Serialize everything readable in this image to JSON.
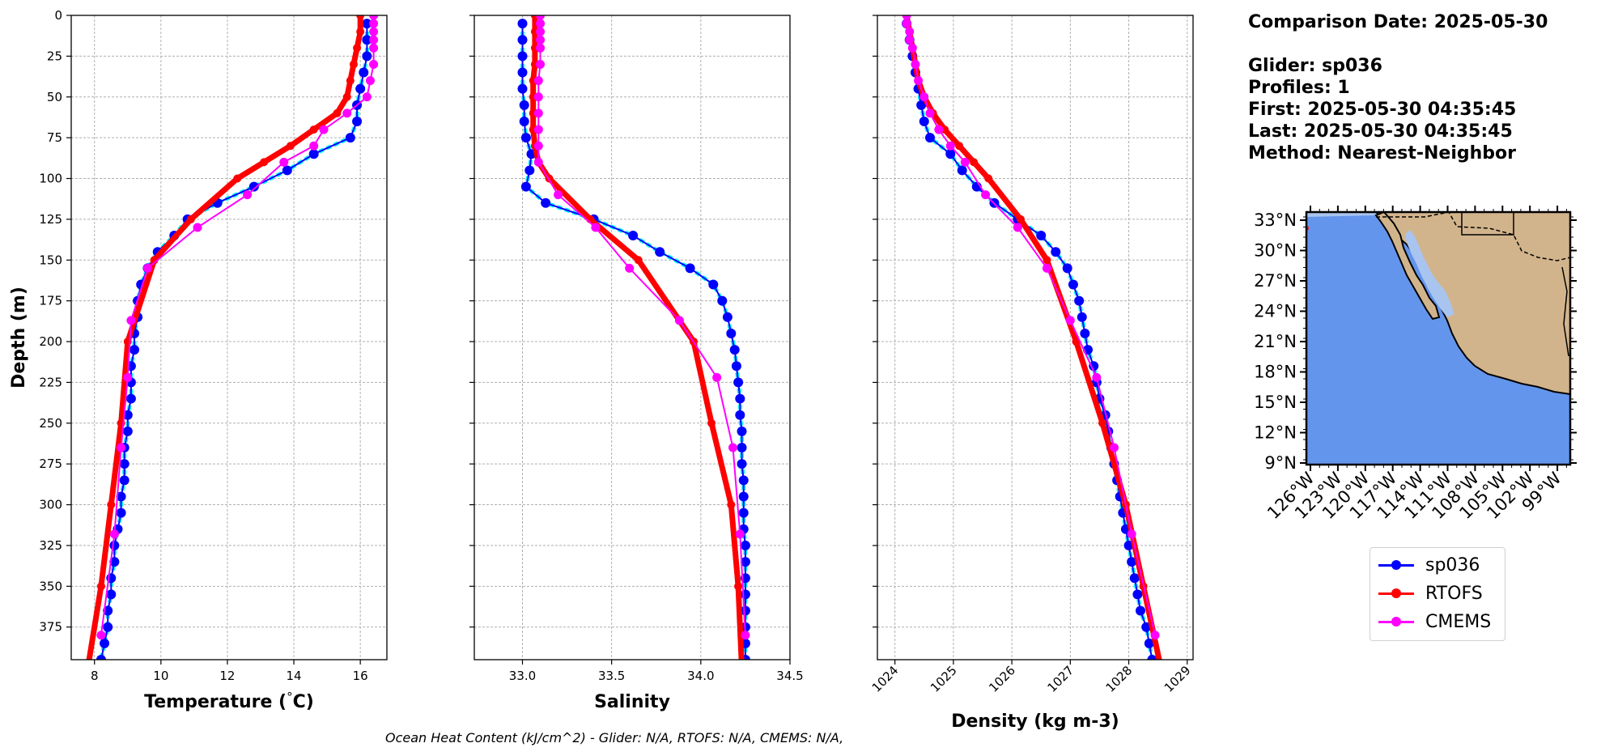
{
  "info": {
    "comparison_date": "Comparison Date: 2025-05-30",
    "glider": "Glider: sp036",
    "profiles": "Profiles: 1",
    "first": "First: 2025-05-30 04:35:45",
    "last": "Last: 2025-05-30 04:35:45",
    "method": "Method: Nearest-Neighbor"
  },
  "footnote": "Ocean Heat Content (kJ/cm^2) - Glider: N/A,  RTOFS: N/A,  CMEMS: N/A,",
  "legend": [
    {
      "name": "sp036",
      "color": "#0000ff"
    },
    {
      "name": "RTOFS",
      "color": "#ff0000"
    },
    {
      "name": "CMEMS",
      "color": "#ff00ff"
    }
  ],
  "map": {
    "lat_labels": [
      "33°N",
      "30°N",
      "27°N",
      "24°N",
      "21°N",
      "18°N",
      "15°N",
      "12°N",
      "9°N"
    ],
    "lon_labels": [
      "126°W",
      "123°W",
      "120°W",
      "117°W",
      "114°W",
      "111°W",
      "108°W",
      "105°W",
      "102°W",
      "99°W"
    ],
    "ocean_color": "#6495ed",
    "land_color": "#d2b48c"
  },
  "chart_data": [
    {
      "type": "line",
      "xlabel": "Temperature (°C)",
      "ylabel": "Depth (m)",
      "xlim": [
        7.3,
        16.8
      ],
      "ylim": [
        395,
        0
      ],
      "xticks": [
        8,
        10,
        12,
        14,
        16
      ],
      "yticks": [
        0,
        25,
        50,
        75,
        100,
        125,
        150,
        175,
        200,
        225,
        250,
        275,
        300,
        325,
        350,
        375
      ],
      "grid": true,
      "series": [
        {
          "name": "sp036",
          "depth": [
            5,
            15,
            25,
            35,
            45,
            55,
            65,
            75,
            85,
            95,
            105,
            115,
            125,
            135,
            145,
            155,
            165,
            175,
            185,
            195,
            205,
            215,
            225,
            235,
            245,
            255,
            265,
            275,
            285,
            295,
            305,
            315,
            325,
            335,
            345,
            355,
            365,
            375,
            385,
            395
          ],
          "values": [
            16.2,
            16.2,
            16.2,
            16.1,
            16.0,
            15.9,
            15.9,
            15.7,
            14.6,
            13.8,
            12.8,
            11.7,
            10.8,
            10.4,
            9.9,
            9.6,
            9.4,
            9.3,
            9.3,
            9.2,
            9.2,
            9.1,
            9.1,
            9.1,
            9.0,
            9.0,
            8.9,
            8.9,
            8.9,
            8.8,
            8.8,
            8.7,
            8.6,
            8.6,
            8.5,
            8.5,
            8.4,
            8.4,
            8.3,
            8.2
          ]
        },
        {
          "name": "RTOFS",
          "depth": [
            0,
            10,
            20,
            30,
            40,
            50,
            60,
            70,
            80,
            90,
            100,
            125,
            150,
            200,
            250,
            300,
            350,
            400
          ],
          "values": [
            16.0,
            16.0,
            15.9,
            15.8,
            15.7,
            15.6,
            15.3,
            14.6,
            13.9,
            13.1,
            12.3,
            10.9,
            9.8,
            9.0,
            8.8,
            8.5,
            8.2,
            7.8
          ]
        },
        {
          "name": "CMEMS",
          "depth": [
            0,
            5,
            10,
            15,
            20,
            30,
            40,
            50,
            60,
            70,
            80,
            90,
            110,
            130,
            155,
            187,
            222,
            265,
            318,
            380
          ],
          "values": [
            16.4,
            16.4,
            16.4,
            16.4,
            16.4,
            16.4,
            16.3,
            16.2,
            15.6,
            14.9,
            14.6,
            13.7,
            12.6,
            11.1,
            9.6,
            9.1,
            9.0,
            8.8,
            8.6,
            8.2
          ]
        }
      ]
    },
    {
      "type": "line",
      "xlabel": "Salinity",
      "xlim": [
        32.73,
        34.5
      ],
      "ylim": [
        395,
        0
      ],
      "xticks": [
        33.0,
        33.5,
        34.0,
        34.5
      ],
      "yticks": [
        0,
        25,
        50,
        75,
        100,
        125,
        150,
        175,
        200,
        225,
        250,
        275,
        300,
        325,
        350,
        375
      ],
      "grid": true,
      "series": [
        {
          "name": "sp036",
          "depth": [
            5,
            15,
            25,
            35,
            45,
            55,
            65,
            75,
            85,
            95,
            105,
            115,
            125,
            135,
            145,
            155,
            165,
            175,
            185,
            195,
            205,
            215,
            225,
            235,
            245,
            255,
            265,
            275,
            285,
            295,
            305,
            315,
            325,
            335,
            345,
            355,
            365,
            375,
            385,
            395
          ],
          "values": [
            33.0,
            33.0,
            33.0,
            33.0,
            33.0,
            33.01,
            33.01,
            33.02,
            33.05,
            33.04,
            33.02,
            33.13,
            33.4,
            33.62,
            33.77,
            33.94,
            34.07,
            34.12,
            34.15,
            34.17,
            34.19,
            34.2,
            34.21,
            34.22,
            34.22,
            34.23,
            34.23,
            34.23,
            34.24,
            34.24,
            34.24,
            34.24,
            34.25,
            34.25,
            34.25,
            34.25,
            34.25,
            34.25,
            34.25,
            34.25
          ]
        },
        {
          "name": "RTOFS",
          "depth": [
            0,
            10,
            20,
            30,
            40,
            50,
            60,
            70,
            80,
            90,
            100,
            125,
            150,
            200,
            250,
            300,
            350,
            400
          ],
          "values": [
            33.07,
            33.07,
            33.07,
            33.07,
            33.06,
            33.06,
            33.06,
            33.06,
            33.07,
            33.09,
            33.15,
            33.38,
            33.65,
            33.96,
            34.06,
            34.17,
            34.21,
            34.23
          ]
        },
        {
          "name": "CMEMS",
          "depth": [
            0,
            5,
            10,
            15,
            20,
            30,
            40,
            50,
            60,
            70,
            80,
            90,
            110,
            130,
            155,
            187,
            222,
            265,
            318,
            380
          ],
          "values": [
            33.1,
            33.1,
            33.1,
            33.1,
            33.1,
            33.1,
            33.09,
            33.09,
            33.09,
            33.09,
            33.09,
            33.09,
            33.2,
            33.41,
            33.6,
            33.88,
            34.09,
            34.18,
            34.22,
            34.25
          ]
        }
      ]
    },
    {
      "type": "line",
      "xlabel": "Density (kg m-3)",
      "xlim": [
        1023.7,
        1029.1
      ],
      "ylim": [
        395,
        0
      ],
      "xticks": [
        1024,
        1025,
        1026,
        1027,
        1028,
        1029
      ],
      "yticks": [
        0,
        25,
        50,
        75,
        100,
        125,
        150,
        175,
        200,
        225,
        250,
        275,
        300,
        325,
        350,
        375
      ],
      "grid": true,
      "series": [
        {
          "name": "sp036",
          "depth": [
            5,
            15,
            25,
            35,
            45,
            55,
            65,
            75,
            85,
            95,
            105,
            115,
            125,
            135,
            145,
            155,
            165,
            175,
            185,
            195,
            205,
            215,
            225,
            235,
            245,
            255,
            265,
            275,
            285,
            295,
            305,
            315,
            325,
            335,
            345,
            355,
            365,
            375,
            385,
            395
          ],
          "values": [
            1024.2,
            1024.25,
            1024.3,
            1024.35,
            1024.4,
            1024.45,
            1024.5,
            1024.6,
            1024.95,
            1025.15,
            1025.4,
            1025.7,
            1026.1,
            1026.5,
            1026.75,
            1026.95,
            1027.05,
            1027.15,
            1027.2,
            1027.25,
            1027.3,
            1027.4,
            1027.45,
            1027.5,
            1027.6,
            1027.65,
            1027.7,
            1027.75,
            1027.8,
            1027.85,
            1027.9,
            1027.95,
            1028.0,
            1028.05,
            1028.1,
            1028.15,
            1028.2,
            1028.3,
            1028.35,
            1028.4
          ]
        },
        {
          "name": "RTOFS",
          "depth": [
            0,
            10,
            20,
            30,
            40,
            50,
            60,
            70,
            80,
            90,
            100,
            125,
            150,
            200,
            250,
            300,
            350,
            400
          ],
          "values": [
            1024.2,
            1024.25,
            1024.3,
            1024.35,
            1024.4,
            1024.5,
            1024.65,
            1024.85,
            1025.1,
            1025.35,
            1025.6,
            1026.15,
            1026.6,
            1027.1,
            1027.55,
            1027.95,
            1028.25,
            1028.55
          ]
        },
        {
          "name": "CMEMS",
          "depth": [
            0,
            5,
            10,
            15,
            20,
            30,
            40,
            50,
            60,
            70,
            80,
            90,
            110,
            130,
            155,
            187,
            222,
            265,
            318,
            380
          ],
          "values": [
            1024.2,
            1024.2,
            1024.25,
            1024.25,
            1024.3,
            1024.35,
            1024.4,
            1024.5,
            1024.6,
            1024.75,
            1024.95,
            1025.2,
            1025.55,
            1026.1,
            1026.6,
            1027.0,
            1027.45,
            1027.75,
            1028.05,
            1028.45
          ]
        }
      ]
    }
  ]
}
